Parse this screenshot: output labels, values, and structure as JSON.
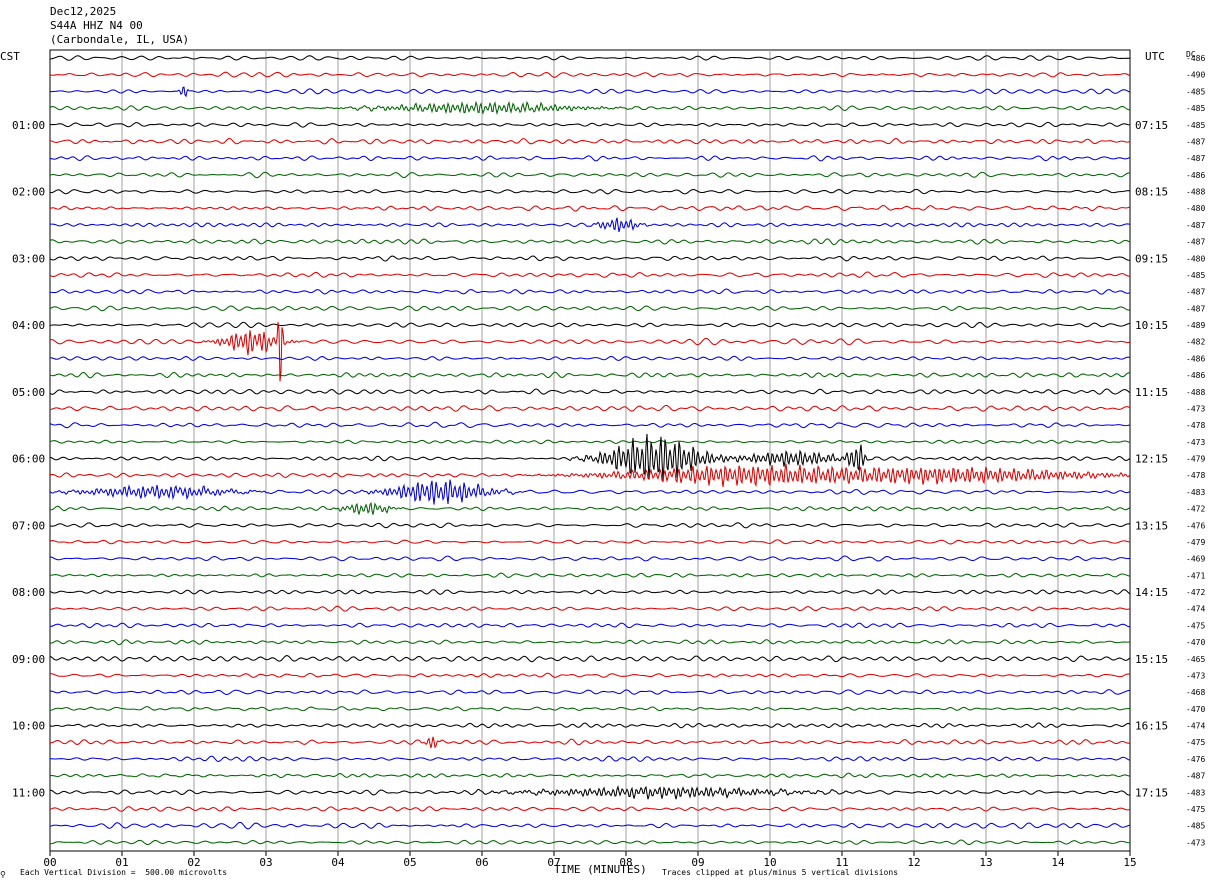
{
  "header": {
    "date": "Dec12,2025",
    "station": "S44A HHZ N4 00",
    "location": "(Carbondale, IL, USA)"
  },
  "left_timezone": "CST",
  "right_timezone": "UTC",
  "dc_label": "DC",
  "footer": {
    "scale_note": "Each Vertical Division =  500.00 microvolts",
    "clip_note": "Traces clipped at plus/minus 5 vertical divisions",
    "corner_mark": "⚲"
  },
  "colors": {
    "trace_cycle": [
      "#000000",
      "#e00000",
      "#0000e0",
      "#006400"
    ],
    "grid": "#a0a0a0"
  },
  "chart_data": {
    "type": "line",
    "title": "",
    "xlabel": "TIME (MINUTES)",
    "xlim": [
      0,
      15
    ],
    "x_tick_labels": [
      "00",
      "01",
      "02",
      "03",
      "04",
      "05",
      "06",
      "07",
      "08",
      "09",
      "10",
      "11",
      "12",
      "13",
      "14",
      "15"
    ],
    "rows": 48,
    "left_hour_labels": [
      "01:00",
      "02:00",
      "03:00",
      "04:00",
      "05:00",
      "06:00",
      "07:00",
      "08:00",
      "09:00",
      "10:00",
      "11:00"
    ],
    "right_hour_labels": [
      "07:15",
      "08:15",
      "09:15",
      "10:15",
      "11:15",
      "12:15",
      "13:15",
      "14:15",
      "15:15",
      "16:15",
      "17:15"
    ],
    "dc_offsets": [
      "-486",
      "-490",
      "-485",
      "-485",
      "-485",
      "-487",
      "-487",
      "-486",
      "-488",
      "-480",
      "-487",
      "-487",
      "-480",
      "-485",
      "-487",
      "-487",
      "-489",
      "-482",
      "-486",
      "-486",
      "-488",
      "-473",
      "-478",
      "-473",
      "-479",
      "-478",
      "-483",
      "-472",
      "-476",
      "-479",
      "-469",
      "-471",
      "-472",
      "-474",
      "-475",
      "-470",
      "-465",
      "-473",
      "-468",
      "-470",
      "-474",
      "-475",
      "-476",
      "-487",
      "-483",
      "-475",
      "-485",
      "-473"
    ],
    "events": [
      {
        "row": 2,
        "t_min": 1.85,
        "amp": 0.55,
        "dur": 0.08
      },
      {
        "row": 3,
        "t_min": 6.0,
        "amp": 0.35,
        "dur": 2.0
      },
      {
        "row": 10,
        "t_min": 7.9,
        "amp": 0.45,
        "dur": 0.4
      },
      {
        "row": 17,
        "t_min": 2.8,
        "amp": 0.8,
        "dur": 0.6
      },
      {
        "row": 17,
        "t_min": 3.2,
        "amp": 2.6,
        "dur": 0.05
      },
      {
        "row": 24,
        "t_min": 8.4,
        "amp": 1.5,
        "dur": 1.0
      },
      {
        "row": 24,
        "t_min": 10.3,
        "amp": 0.5,
        "dur": 1.0
      },
      {
        "row": 24,
        "t_min": 11.2,
        "amp": 1.2,
        "dur": 0.15
      },
      {
        "row": 25,
        "t_min": 9.5,
        "amp": 0.6,
        "dur": 2.5
      },
      {
        "row": 25,
        "t_min": 12.5,
        "amp": 0.5,
        "dur": 3.0
      },
      {
        "row": 26,
        "t_min": 5.4,
        "amp": 0.8,
        "dur": 1.0
      },
      {
        "row": 26,
        "t_min": 1.5,
        "amp": 0.4,
        "dur": 1.5
      },
      {
        "row": 27,
        "t_min": 4.4,
        "amp": 0.4,
        "dur": 0.5
      },
      {
        "row": 41,
        "t_min": 5.3,
        "amp": 0.4,
        "dur": 0.15
      },
      {
        "row": 44,
        "t_min": 8.5,
        "amp": 0.35,
        "dur": 2.5
      }
    ]
  }
}
